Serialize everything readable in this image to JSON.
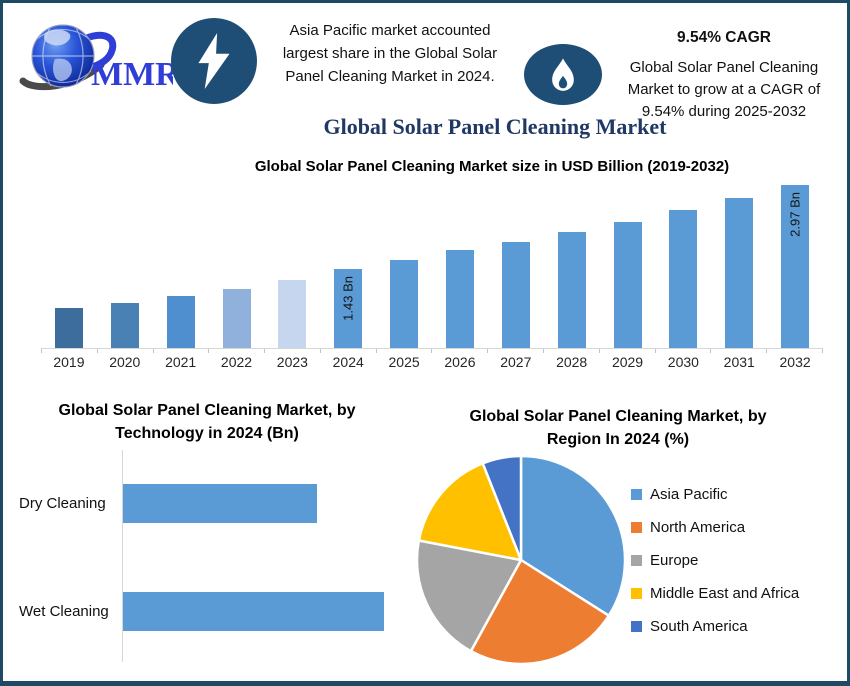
{
  "page": {
    "background": "#ffffff",
    "border_color": "#1e4a63"
  },
  "header": {
    "logo_text": "MMR",
    "logo_colors": {
      "globe_blue": "#1b3fd0",
      "swoosh_gray": "#4a4a4a",
      "text_blue": "#2f3ed6"
    },
    "badge_color": "#1e4e75",
    "icons": {
      "left_badge": "lightning-bolt-icon",
      "right_badge": "flame-icon",
      "logo": "globe-logo"
    },
    "callout_left": {
      "lines": [
        "Asia Pacific market accounted",
        "largest share in the Global Solar",
        "Panel Cleaning Market in 2024."
      ]
    },
    "callout_right": {
      "heading": "9.54% CAGR",
      "lines": [
        "Global Solar Panel Cleaning",
        "Market to grow at a CAGR of",
        "9.54% during 2025-2032"
      ]
    }
  },
  "title": "Global Solar Panel Cleaning Market",
  "title_color": "#1f3864",
  "chart_data": [
    {
      "type": "bar",
      "title": "Global Solar Panel Cleaning Market size in USD Billion (2019-2032)",
      "xlabel": "",
      "ylabel": "USD Billion",
      "ylim": [
        0,
        3.1
      ],
      "grid": false,
      "default_color": "#5b9bd5",
      "points": [
        {
          "year": "2019",
          "value": 0.72,
          "color": "#3c6d9c"
        },
        {
          "year": "2020",
          "value": 0.82,
          "color": "#4a81b4"
        },
        {
          "year": "2021",
          "value": 0.94,
          "color": "#4f8fd0"
        },
        {
          "year": "2022",
          "value": 1.08,
          "color": "#8fb1dc"
        },
        {
          "year": "2023",
          "value": 1.24,
          "color": "#c6d6ee"
        },
        {
          "year": "2024",
          "value": 1.43,
          "color": "#5b9bd5",
          "label": "1.43 Bn"
        },
        {
          "year": "2025",
          "value": 1.6,
          "color": "#5b9bd5"
        },
        {
          "year": "2026",
          "value": 1.78,
          "color": "#5b9bd5"
        },
        {
          "year": "2027",
          "value": 1.92,
          "color": "#5b9bd5"
        },
        {
          "year": "2028",
          "value": 2.1,
          "color": "#5b9bd5"
        },
        {
          "year": "2029",
          "value": 2.3,
          "color": "#5b9bd5"
        },
        {
          "year": "2030",
          "value": 2.5,
          "color": "#5b9bd5"
        },
        {
          "year": "2031",
          "value": 2.72,
          "color": "#5b9bd5"
        },
        {
          "year": "2032",
          "value": 2.97,
          "color": "#5b9bd5",
          "label": "2.97 Bn"
        }
      ]
    },
    {
      "type": "bar",
      "orientation": "horizontal",
      "title": "Global Solar Panel Cleaning Market, by Technology in 2024 (Bn)",
      "title_lines": [
        "Global Solar Panel Cleaning Market, by",
        "Technology in 2024 (Bn)"
      ],
      "bar_color": "#5b9bd5",
      "grid": false,
      "bars": [
        {
          "label": "Dry Cleaning",
          "value": 0.61
        },
        {
          "label": "Wet Cleaning",
          "value": 0.82
        }
      ]
    },
    {
      "type": "pie",
      "title": "Global Solar Panel Cleaning Market, by Region In 2024 (%)",
      "title_lines": [
        "Global Solar Panel Cleaning Market, by",
        "Region In 2024 (%)"
      ],
      "legend_position": "right",
      "start_angle": 0,
      "slices": [
        {
          "label": "Asia Pacific",
          "value": 34,
          "color": "#5b9bd5"
        },
        {
          "label": "North America",
          "value": 24,
          "color": "#ed7d31"
        },
        {
          "label": "Europe",
          "value": 20,
          "color": "#a5a5a5"
        },
        {
          "label": "Middle East and Africa",
          "value": 16,
          "color": "#ffc000"
        },
        {
          "label": "South America",
          "value": 6,
          "color": "#4472c4"
        }
      ]
    }
  ]
}
